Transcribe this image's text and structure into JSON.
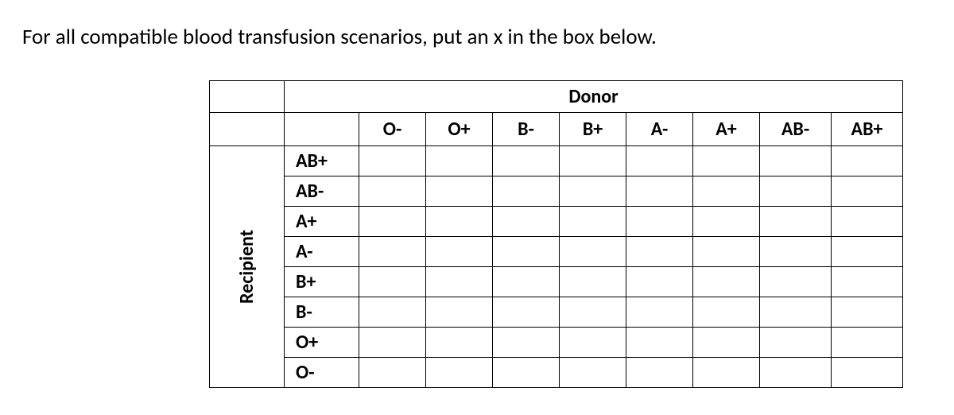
{
  "instruction": "For all compatible blood transfusion scenarios, put an x in the box below.",
  "table": {
    "donor_label": "Donor",
    "recipient_label": "Recipient",
    "donor_columns": [
      "O-",
      "O+",
      "B-",
      "B+",
      "A-",
      "A+",
      "AB-",
      "AB+"
    ],
    "recipient_rows": [
      "AB+",
      "AB-",
      "A+",
      "A-",
      "B+",
      "B-",
      "O+",
      "O-"
    ],
    "cells": [
      [
        "",
        "",
        "",
        "",
        "",
        "",
        "",
        ""
      ],
      [
        "",
        "",
        "",
        "",
        "",
        "",
        "",
        ""
      ],
      [
        "",
        "",
        "",
        "",
        "",
        "",
        "",
        ""
      ],
      [
        "",
        "",
        "",
        "",
        "",
        "",
        "",
        ""
      ],
      [
        "",
        "",
        "",
        "",
        "",
        "",
        "",
        ""
      ],
      [
        "",
        "",
        "",
        "",
        "",
        "",
        "",
        ""
      ],
      [
        "",
        "",
        "",
        "",
        "",
        "",
        "",
        ""
      ],
      [
        "",
        "",
        "",
        "",
        "",
        "",
        "",
        ""
      ]
    ],
    "border_color": "#000000",
    "font_family": "Calibri",
    "header_fontsize": 24,
    "body_fontsize": 24,
    "col_widths": {
      "spacer": 92,
      "row_label": 94,
      "donor": 84,
      "donor_wide": 90
    },
    "row_heights": {
      "donor_header": 40,
      "col_header": 42,
      "body": 38
    }
  },
  "background_color": "#ffffff",
  "text_color": "#000000"
}
